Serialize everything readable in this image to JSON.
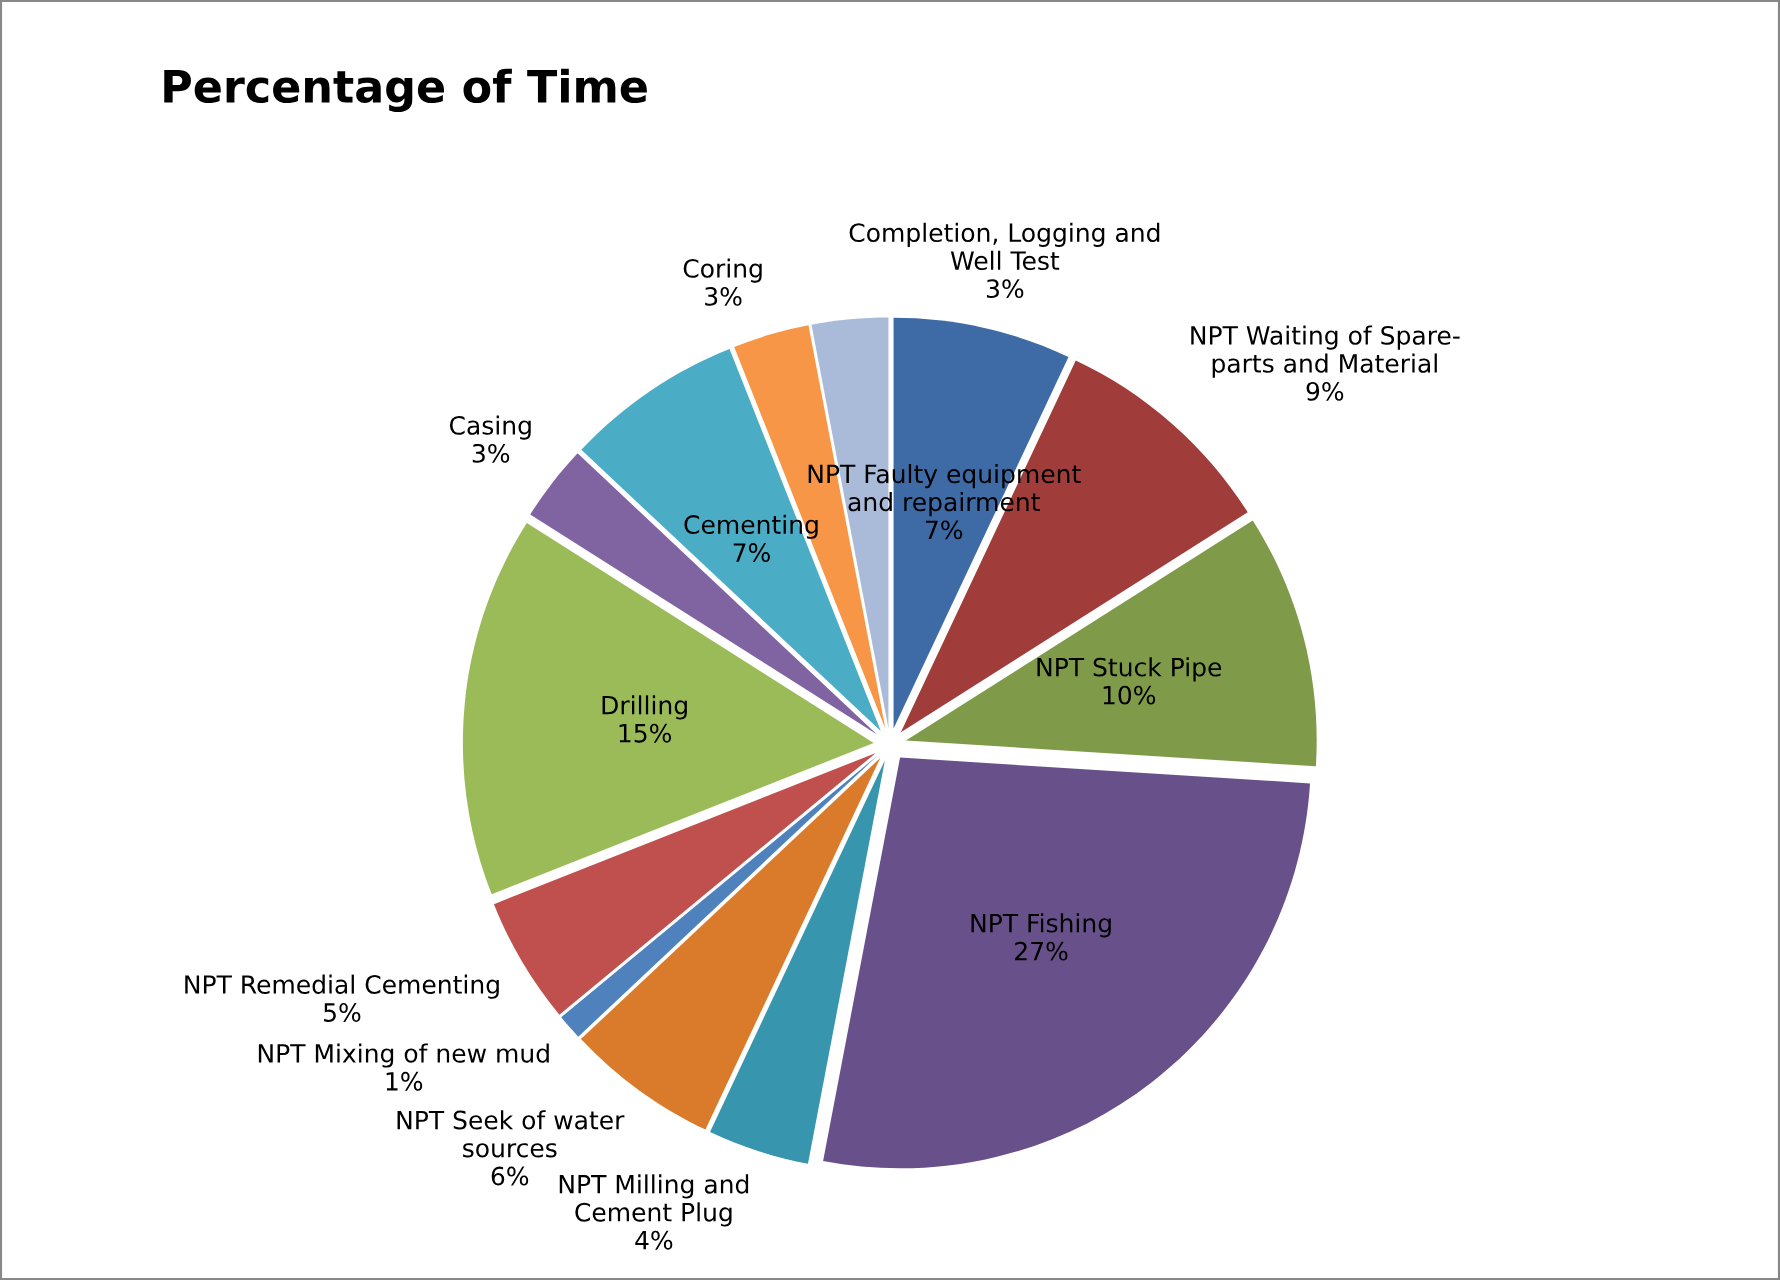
{
  "chart_data": {
    "type": "pie",
    "title": "Percentage of Time",
    "categories": [
      "NPT Faulty equipment\nand repairment",
      "NPT Waiting of Spare-\nparts and Material",
      "NPT Stuck Pipe",
      "NPT Fishing",
      "NPT Milling and\nCement Plug",
      "NPT Seek of water\nsources",
      "NPT Mixing of new mud",
      "NPT Remedial Cementing",
      "Drilling",
      "Casing",
      "Cementing",
      "Coring",
      "Completion, Logging and\nWell Test"
    ],
    "values": [
      7,
      9,
      10,
      27,
      4,
      6,
      1,
      5,
      15,
      3,
      7,
      3,
      3
    ],
    "value_labels": [
      "7%",
      "9%",
      "10%",
      "27%",
      "4%",
      "6%",
      "1%",
      "5%",
      "15%",
      "3%",
      "7%",
      "3%",
      "3%"
    ],
    "colors": [
      "#3e6aa5",
      "#a03c3a",
      "#7f9a48",
      "#68518a",
      "#3796ae",
      "#d97b2a",
      "#4f81bd",
      "#c0504d",
      "#9bbb59",
      "#8064a2",
      "#4bacc6",
      "#f79646",
      "#a9bbd9"
    ],
    "legend": false
  }
}
